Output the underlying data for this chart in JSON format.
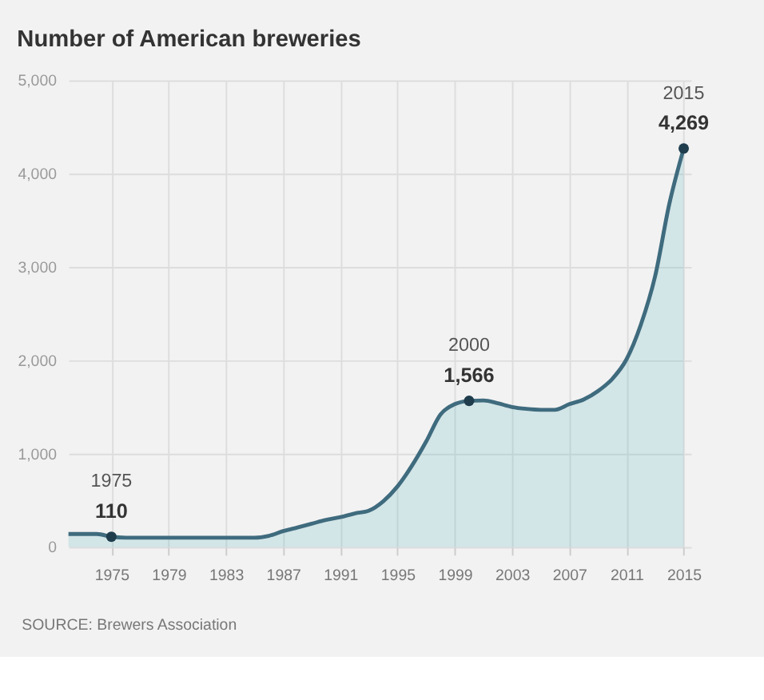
{
  "chart_data": {
    "type": "area",
    "title": "Number of American breweries",
    "x": [
      1972,
      1973,
      1974,
      1975,
      1976,
      1977,
      1978,
      1979,
      1980,
      1981,
      1982,
      1983,
      1984,
      1985,
      1986,
      1987,
      1988,
      1989,
      1990,
      1991,
      1992,
      1993,
      1994,
      1995,
      1996,
      1997,
      1998,
      1999,
      2000,
      2001,
      2002,
      2003,
      2004,
      2005,
      2006,
      2007,
      2008,
      2009,
      2010,
      2011,
      2012,
      2013,
      2014,
      2015
    ],
    "series": [
      {
        "color": "#3f6b7e",
        "values": [
          140,
          140,
          140,
          110,
          100,
          100,
          100,
          100,
          100,
          100,
          100,
          100,
          100,
          100,
          120,
          170,
          210,
          250,
          290,
          320,
          360,
          390,
          490,
          650,
          870,
          1130,
          1420,
          1530,
          1566,
          1570,
          1540,
          1500,
          1480,
          1470,
          1470,
          1530,
          1580,
          1670,
          1800,
          2010,
          2380,
          2900,
          3680,
          4269
        ],
        "value_labels": [
          null,
          null,
          null,
          "110",
          null,
          null,
          null,
          null,
          null,
          null,
          null,
          null,
          null,
          null,
          null,
          null,
          null,
          null,
          null,
          null,
          null,
          null,
          null,
          null,
          null,
          null,
          null,
          null,
          "1,566",
          null,
          null,
          null,
          null,
          null,
          null,
          null,
          null,
          null,
          null,
          null,
          null,
          null,
          null,
          "4,269"
        ]
      }
    ],
    "annotations": [
      {
        "text": "1975",
        "x": 1975,
        "y": 110
      },
      {
        "text": "2000",
        "x": 2000,
        "y": 1566
      },
      {
        "text": "2015",
        "x": 2015,
        "y": 4269
      },
      "SOURCE: Brewers Association"
    ],
    "xlim": [
      1972,
      2015.5
    ],
    "xticks": [
      1975,
      1979,
      1983,
      1987,
      1991,
      1995,
      1999,
      2003,
      2007,
      2011,
      2015
    ],
    "ylim": [
      0,
      5000
    ],
    "yticks": [
      {
        "value": 0,
        "label": "0"
      },
      {
        "value": 1000,
        "label": "1,000"
      },
      {
        "value": 2000,
        "label": "2,000"
      },
      {
        "value": 3000,
        "label": "3,000"
      },
      {
        "value": 4000,
        "label": "4,000"
      },
      {
        "value": 5000,
        "label": "5,000"
      }
    ],
    "grid": true
  }
}
